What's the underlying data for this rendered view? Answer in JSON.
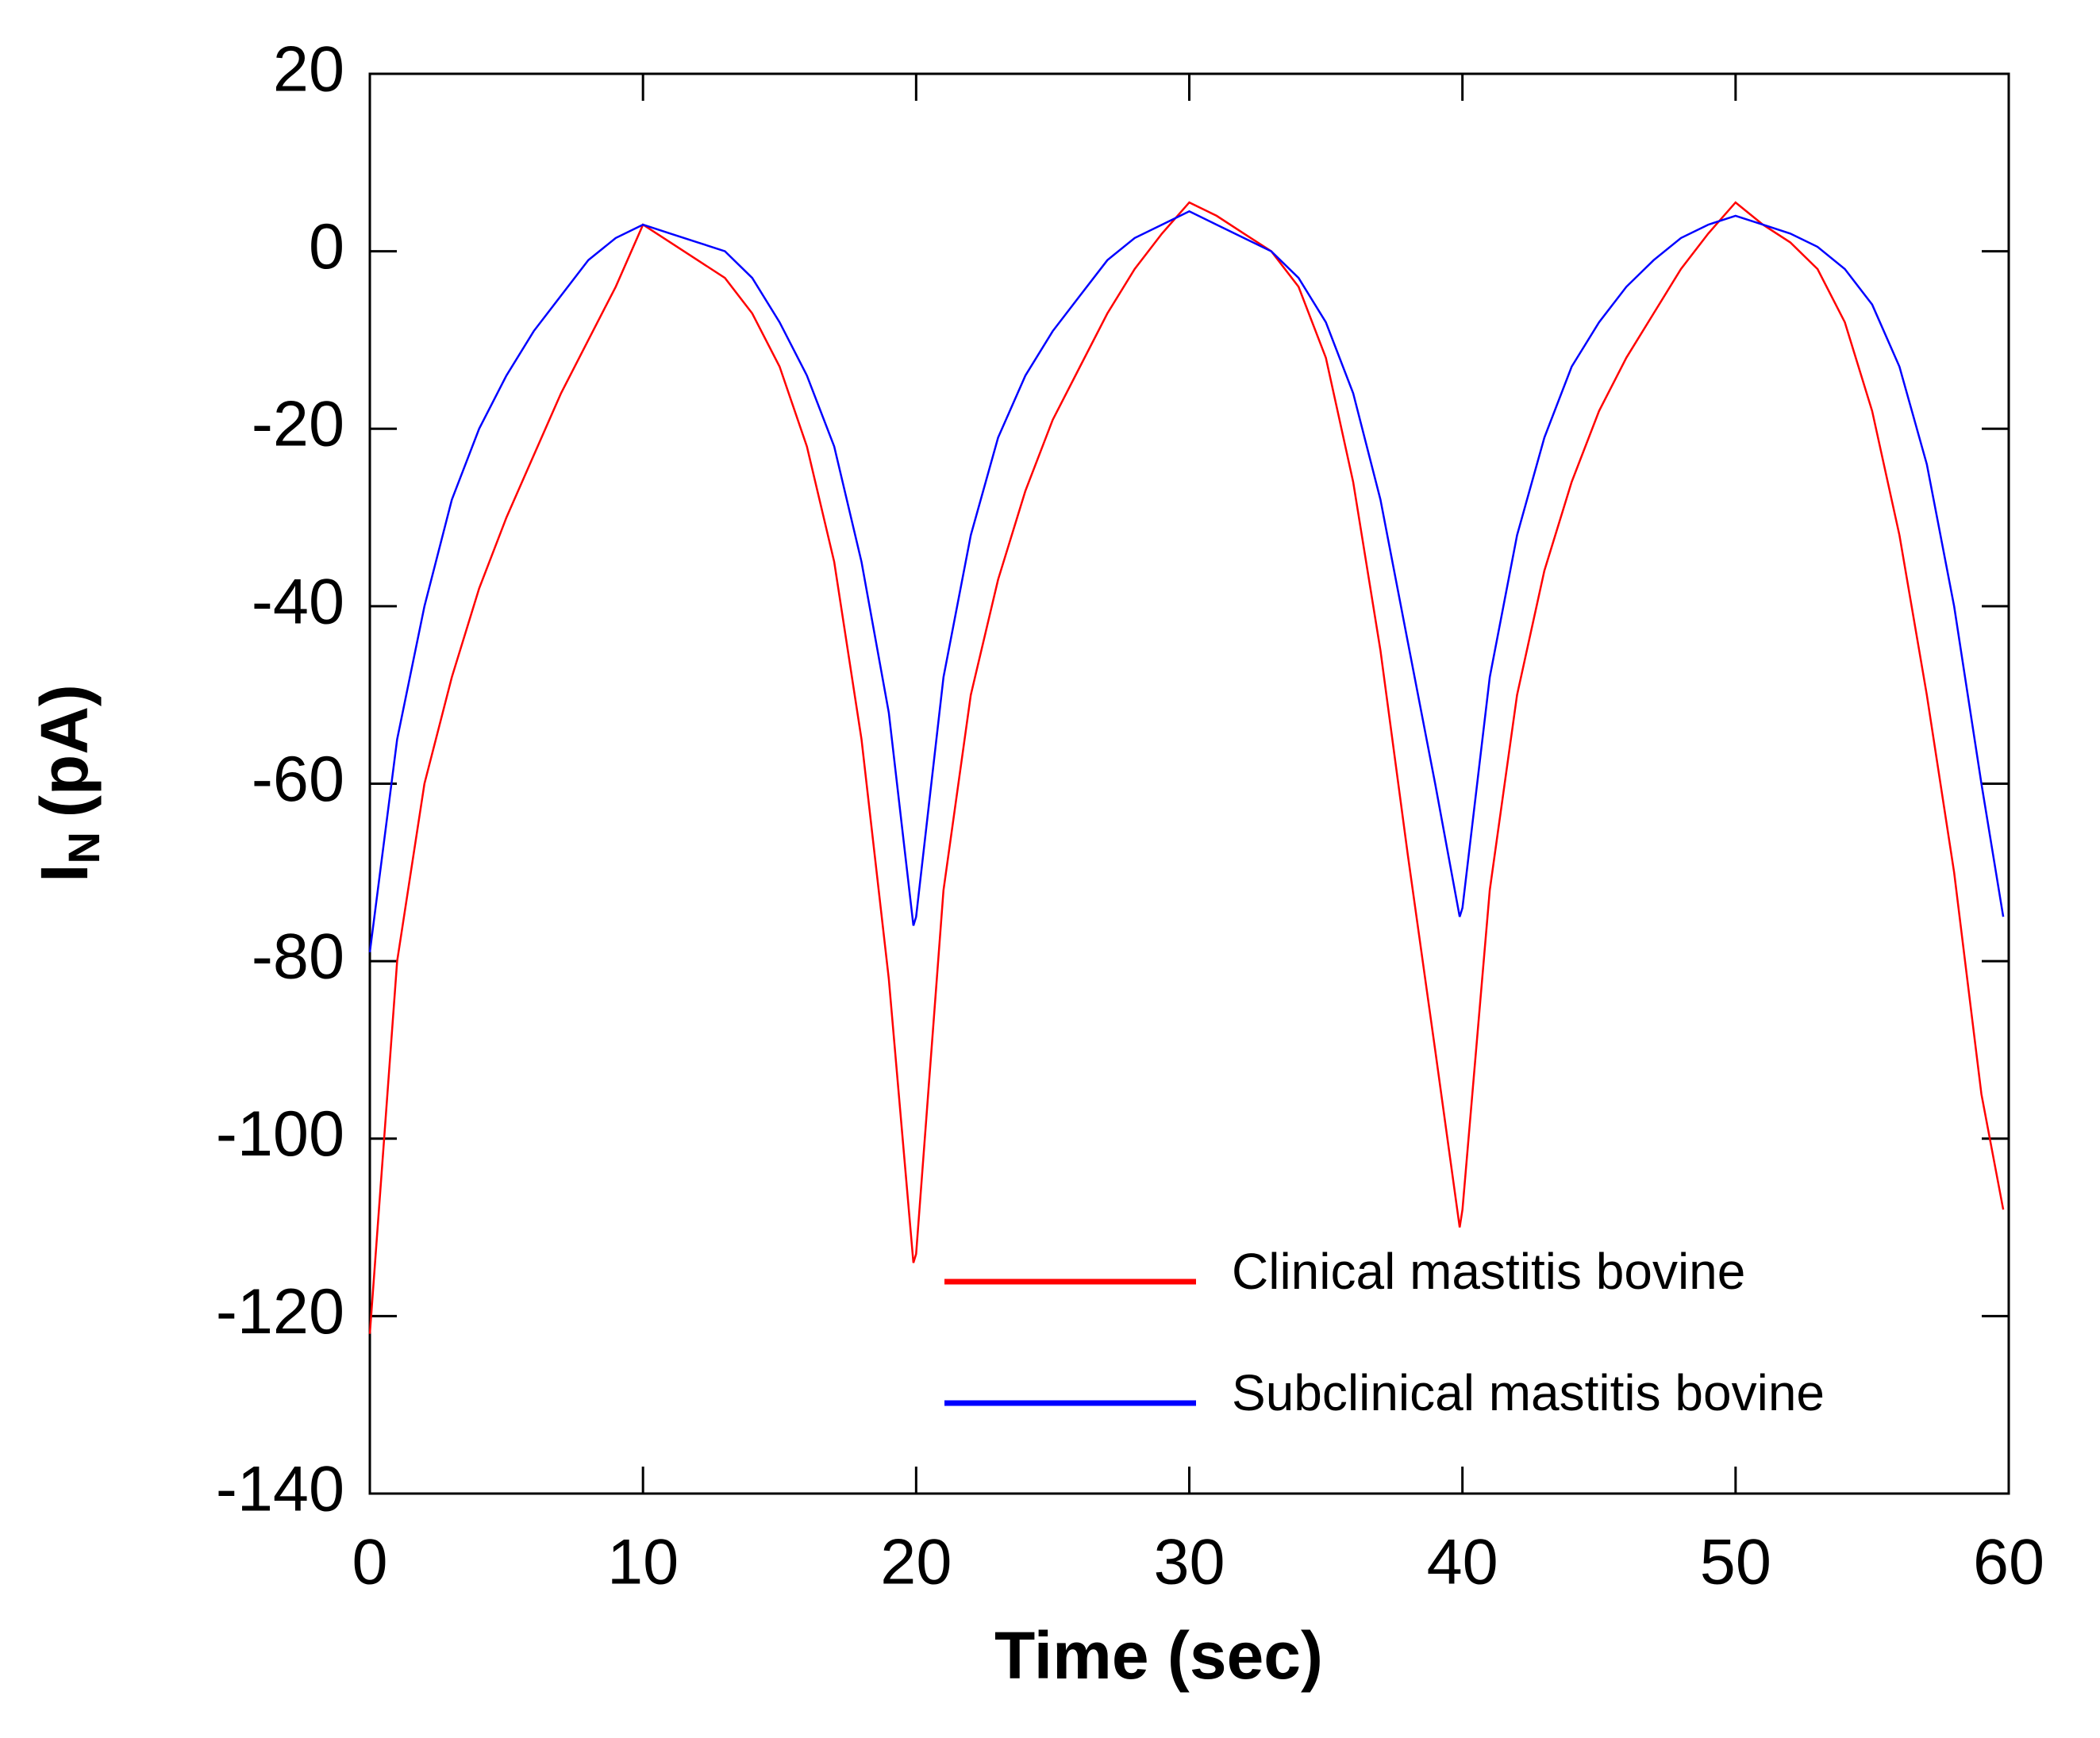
{
  "chart_data": {
    "type": "line",
    "x_label": "Time (sec)",
    "y_label": {
      "main": "I",
      "subscript": "N",
      "unit": "(pA)"
    },
    "x": [
      0,
      1,
      2,
      3,
      4,
      5,
      6,
      7,
      8,
      9,
      10,
      11,
      12,
      13,
      14,
      15,
      16,
      17,
      18,
      19,
      19.9,
      20,
      21,
      22,
      23,
      24,
      25,
      26,
      27,
      28,
      29,
      30,
      31,
      32,
      33,
      34,
      35,
      36,
      37,
      38,
      39,
      39.9,
      40,
      41,
      42,
      43,
      44,
      45,
      46,
      47,
      48,
      49,
      50,
      51,
      52,
      53,
      54,
      55,
      56,
      57,
      58,
      59,
      59.8
    ],
    "series": [
      {
        "name": "Clinical mastitis bovine",
        "color": "#ff0000",
        "values": [
          -122,
          -80,
          -60,
          -48,
          -38,
          -30,
          -23,
          -16,
          -10,
          -4,
          3,
          1,
          -1,
          -3,
          -7,
          -13,
          -22,
          -35,
          -55,
          -82,
          -114,
          -113,
          -72,
          -50,
          -37,
          -27,
          -19,
          -13,
          -7,
          -2,
          2,
          5.5,
          4,
          2,
          0,
          -4,
          -12,
          -26,
          -45,
          -68,
          -90,
          -110,
          -108,
          -72,
          -50,
          -36,
          -26,
          -18,
          -12,
          -7,
          -2,
          2,
          5.5,
          3,
          1,
          -2,
          -8,
          -18,
          -32,
          -50,
          -70,
          -95,
          -108
        ]
      },
      {
        "name": "Subclinical mastitis bovine",
        "color": "#0000ff",
        "values": [
          -79,
          -55,
          -40,
          -28,
          -20,
          -14,
          -9,
          -5,
          -1,
          1.5,
          3,
          2,
          1,
          0,
          -3,
          -8,
          -14,
          -22,
          -35,
          -52,
          -76,
          -75,
          -48,
          -32,
          -21,
          -14,
          -9,
          -5,
          -1,
          1.5,
          3,
          4.5,
          3,
          1.5,
          0,
          -3,
          -8,
          -16,
          -28,
          -44,
          -60,
          -75,
          -74,
          -48,
          -32,
          -21,
          -13,
          -8,
          -4,
          -1,
          1.5,
          3,
          4,
          3,
          2,
          0.5,
          -2,
          -6,
          -13,
          -24,
          -40,
          -60,
          -75
        ]
      }
    ],
    "xlim": [
      0,
      60
    ],
    "xticks": [
      0,
      10,
      20,
      30,
      40,
      50,
      60
    ],
    "ylim": [
      -140,
      20
    ],
    "yticks": [
      -140,
      -120,
      -100,
      -80,
      -60,
      -40,
      -20,
      0,
      20
    ],
    "grid": false,
    "legend": "lower right"
  }
}
